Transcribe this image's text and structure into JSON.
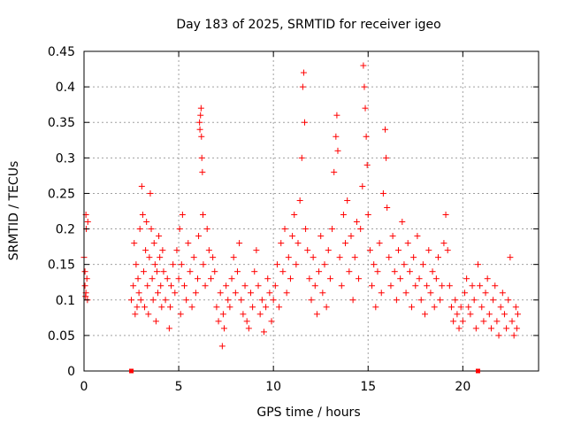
{
  "chart_data": {
    "type": "scatter",
    "title": "Day 183 of 2025, SRMTID for receiver igeo",
    "xlabel": "GPS time / hours",
    "ylabel": "SRMTID / TECUs",
    "xlim": [
      0,
      24
    ],
    "ylim": [
      0,
      0.45
    ],
    "grid": true,
    "marker": "+",
    "color": "#ff0000",
    "x_ticks": [
      0,
      5,
      10,
      15,
      20
    ],
    "x_tick_labels": [
      "0",
      "5",
      "10",
      "15",
      "20"
    ],
    "y_ticks": [
      0,
      0.05,
      0.1,
      0.15,
      0.2,
      0.25,
      0.3,
      0.35,
      0.4,
      0.45
    ],
    "y_tick_labels": [
      "0",
      "0.05",
      "0.1",
      "0.15",
      "0.2",
      "0.25",
      "0.3",
      "0.35",
      "0.4",
      "0.45"
    ],
    "zero_markers_x": [
      2.5,
      20.8
    ],
    "series": [
      {
        "name": "SRMTID",
        "points": [
          [
            0.0,
            0.16
          ],
          [
            0.05,
            0.12
          ],
          [
            0.08,
            0.105
          ],
          [
            0.1,
            0.22
          ],
          [
            0.12,
            0.2
          ],
          [
            0.15,
            0.13
          ],
          [
            0.18,
            0.1
          ],
          [
            0.2,
            0.21
          ],
          [
            0.05,
            0.14
          ],
          [
            0.1,
            0.11
          ],
          [
            2.5,
            0.1
          ],
          [
            2.6,
            0.12
          ],
          [
            2.65,
            0.18
          ],
          [
            2.7,
            0.08
          ],
          [
            2.75,
            0.15
          ],
          [
            2.8,
            0.09
          ],
          [
            2.85,
            0.13
          ],
          [
            2.9,
            0.11
          ],
          [
            2.95,
            0.2
          ],
          [
            3.0,
            0.1
          ],
          [
            3.05,
            0.26
          ],
          [
            3.1,
            0.22
          ],
          [
            3.15,
            0.14
          ],
          [
            3.2,
            0.09
          ],
          [
            3.25,
            0.17
          ],
          [
            3.3,
            0.21
          ],
          [
            3.35,
            0.12
          ],
          [
            3.4,
            0.08
          ],
          [
            3.45,
            0.16
          ],
          [
            3.5,
            0.25
          ],
          [
            3.55,
            0.2
          ],
          [
            3.6,
            0.13
          ],
          [
            3.65,
            0.1
          ],
          [
            3.7,
            0.18
          ],
          [
            3.75,
            0.15
          ],
          [
            3.8,
            0.07
          ],
          [
            3.85,
            0.14
          ],
          [
            3.9,
            0.11
          ],
          [
            3.95,
            0.19
          ],
          [
            4.0,
            0.16
          ],
          [
            4.05,
            0.12
          ],
          [
            4.1,
            0.09
          ],
          [
            4.15,
            0.17
          ],
          [
            4.2,
            0.14
          ],
          [
            4.3,
            0.1
          ],
          [
            4.4,
            0.13
          ],
          [
            4.5,
            0.06
          ],
          [
            4.55,
            0.09
          ],
          [
            4.6,
            0.12
          ],
          [
            4.7,
            0.15
          ],
          [
            4.8,
            0.11
          ],
          [
            4.9,
            0.17
          ],
          [
            5.0,
            0.13
          ],
          [
            5.05,
            0.2
          ],
          [
            5.1,
            0.08
          ],
          [
            5.15,
            0.15
          ],
          [
            5.2,
            0.22
          ],
          [
            5.3,
            0.12
          ],
          [
            5.4,
            0.1
          ],
          [
            5.5,
            0.18
          ],
          [
            5.6,
            0.14
          ],
          [
            5.7,
            0.09
          ],
          [
            5.8,
            0.16
          ],
          [
            5.9,
            0.11
          ],
          [
            6.0,
            0.13
          ],
          [
            6.05,
            0.19
          ],
          [
            6.1,
            0.35
          ],
          [
            6.12,
            0.34
          ],
          [
            6.15,
            0.36
          ],
          [
            6.18,
            0.37
          ],
          [
            6.2,
            0.33
          ],
          [
            6.22,
            0.3
          ],
          [
            6.25,
            0.28
          ],
          [
            6.28,
            0.22
          ],
          [
            6.3,
            0.15
          ],
          [
            6.4,
            0.12
          ],
          [
            6.5,
            0.2
          ],
          [
            6.6,
            0.17
          ],
          [
            6.7,
            0.13
          ],
          [
            6.8,
            0.16
          ],
          [
            6.9,
            0.14
          ],
          [
            7.0,
            0.09
          ],
          [
            7.1,
            0.07
          ],
          [
            7.2,
            0.11
          ],
          [
            7.3,
            0.035
          ],
          [
            7.35,
            0.08
          ],
          [
            7.4,
            0.06
          ],
          [
            7.5,
            0.12
          ],
          [
            7.6,
            0.1
          ],
          [
            7.7,
            0.09
          ],
          [
            7.8,
            0.13
          ],
          [
            7.9,
            0.16
          ],
          [
            8.0,
            0.11
          ],
          [
            8.1,
            0.14
          ],
          [
            8.2,
            0.18
          ],
          [
            8.3,
            0.1
          ],
          [
            8.4,
            0.08
          ],
          [
            8.5,
            0.12
          ],
          [
            8.6,
            0.07
          ],
          [
            8.7,
            0.06
          ],
          [
            8.8,
            0.11
          ],
          [
            8.9,
            0.09
          ],
          [
            9.0,
            0.14
          ],
          [
            9.1,
            0.17
          ],
          [
            9.2,
            0.12
          ],
          [
            9.3,
            0.08
          ],
          [
            9.4,
            0.1
          ],
          [
            9.5,
            0.055
          ],
          [
            9.6,
            0.09
          ],
          [
            9.7,
            0.13
          ],
          [
            9.8,
            0.11
          ],
          [
            9.9,
            0.07
          ],
          [
            10.0,
            0.1
          ],
          [
            10.1,
            0.12
          ],
          [
            10.2,
            0.15
          ],
          [
            10.3,
            0.09
          ],
          [
            10.4,
            0.18
          ],
          [
            10.5,
            0.14
          ],
          [
            10.6,
            0.2
          ],
          [
            10.7,
            0.11
          ],
          [
            10.8,
            0.16
          ],
          [
            10.9,
            0.13
          ],
          [
            11.0,
            0.19
          ],
          [
            11.1,
            0.22
          ],
          [
            11.2,
            0.15
          ],
          [
            11.3,
            0.18
          ],
          [
            11.4,
            0.24
          ],
          [
            11.5,
            0.3
          ],
          [
            11.55,
            0.4
          ],
          [
            11.6,
            0.42
          ],
          [
            11.65,
            0.35
          ],
          [
            11.7,
            0.2
          ],
          [
            11.8,
            0.17
          ],
          [
            11.9,
            0.13
          ],
          [
            12.0,
            0.1
          ],
          [
            12.1,
            0.16
          ],
          [
            12.2,
            0.12
          ],
          [
            12.3,
            0.08
          ],
          [
            12.4,
            0.14
          ],
          [
            12.5,
            0.19
          ],
          [
            12.6,
            0.11
          ],
          [
            12.7,
            0.15
          ],
          [
            12.8,
            0.09
          ],
          [
            12.9,
            0.17
          ],
          [
            13.0,
            0.13
          ],
          [
            13.1,
            0.2
          ],
          [
            13.2,
            0.28
          ],
          [
            13.3,
            0.33
          ],
          [
            13.35,
            0.36
          ],
          [
            13.4,
            0.31
          ],
          [
            13.5,
            0.16
          ],
          [
            13.6,
            0.12
          ],
          [
            13.7,
            0.22
          ],
          [
            13.8,
            0.18
          ],
          [
            13.9,
            0.24
          ],
          [
            14.0,
            0.14
          ],
          [
            14.1,
            0.19
          ],
          [
            14.2,
            0.1
          ],
          [
            14.3,
            0.16
          ],
          [
            14.4,
            0.21
          ],
          [
            14.5,
            0.13
          ],
          [
            14.6,
            0.2
          ],
          [
            14.7,
            0.26
          ],
          [
            14.75,
            0.43
          ],
          [
            14.8,
            0.4
          ],
          [
            14.85,
            0.37
          ],
          [
            14.9,
            0.33
          ],
          [
            14.95,
            0.29
          ],
          [
            15.0,
            0.22
          ],
          [
            15.1,
            0.17
          ],
          [
            15.2,
            0.12
          ],
          [
            15.3,
            0.15
          ],
          [
            15.4,
            0.09
          ],
          [
            15.5,
            0.14
          ],
          [
            15.6,
            0.18
          ],
          [
            15.7,
            0.11
          ],
          [
            15.8,
            0.25
          ],
          [
            15.9,
            0.34
          ],
          [
            15.95,
            0.3
          ],
          [
            16.0,
            0.23
          ],
          [
            16.1,
            0.16
          ],
          [
            16.2,
            0.12
          ],
          [
            16.3,
            0.19
          ],
          [
            16.4,
            0.14
          ],
          [
            16.5,
            0.1
          ],
          [
            16.6,
            0.17
          ],
          [
            16.7,
            0.13
          ],
          [
            16.8,
            0.21
          ],
          [
            16.9,
            0.15
          ],
          [
            17.0,
            0.11
          ],
          [
            17.1,
            0.18
          ],
          [
            17.2,
            0.14
          ],
          [
            17.3,
            0.09
          ],
          [
            17.4,
            0.16
          ],
          [
            17.5,
            0.12
          ],
          [
            17.6,
            0.19
          ],
          [
            17.7,
            0.13
          ],
          [
            17.8,
            0.1
          ],
          [
            17.9,
            0.15
          ],
          [
            18.0,
            0.08
          ],
          [
            18.1,
            0.12
          ],
          [
            18.2,
            0.17
          ],
          [
            18.3,
            0.11
          ],
          [
            18.4,
            0.14
          ],
          [
            18.5,
            0.09
          ],
          [
            18.6,
            0.13
          ],
          [
            18.7,
            0.16
          ],
          [
            18.8,
            0.1
          ],
          [
            18.9,
            0.12
          ],
          [
            19.0,
            0.18
          ],
          [
            19.1,
            0.22
          ],
          [
            19.2,
            0.17
          ],
          [
            19.3,
            0.12
          ],
          [
            19.4,
            0.09
          ],
          [
            19.5,
            0.07
          ],
          [
            19.6,
            0.1
          ],
          [
            19.7,
            0.08
          ],
          [
            19.8,
            0.06
          ],
          [
            19.9,
            0.09
          ],
          [
            20.0,
            0.07
          ],
          [
            20.1,
            0.11
          ],
          [
            20.2,
            0.13
          ],
          [
            20.3,
            0.09
          ],
          [
            20.4,
            0.08
          ],
          [
            20.5,
            0.12
          ],
          [
            20.6,
            0.1
          ],
          [
            20.7,
            0.06
          ],
          [
            20.8,
            0.15
          ],
          [
            20.9,
            0.12
          ],
          [
            21.0,
            0.09
          ],
          [
            21.1,
            0.07
          ],
          [
            21.2,
            0.11
          ],
          [
            21.3,
            0.13
          ],
          [
            21.4,
            0.08
          ],
          [
            21.5,
            0.06
          ],
          [
            21.6,
            0.1
          ],
          [
            21.7,
            0.12
          ],
          [
            21.8,
            0.07
          ],
          [
            21.9,
            0.05
          ],
          [
            22.0,
            0.09
          ],
          [
            22.1,
            0.11
          ],
          [
            22.2,
            0.08
          ],
          [
            22.3,
            0.06
          ],
          [
            22.4,
            0.1
          ],
          [
            22.5,
            0.16
          ],
          [
            22.6,
            0.07
          ],
          [
            22.7,
            0.05
          ],
          [
            22.8,
            0.09
          ],
          [
            22.85,
            0.06
          ],
          [
            22.9,
            0.08
          ]
        ]
      }
    ]
  }
}
